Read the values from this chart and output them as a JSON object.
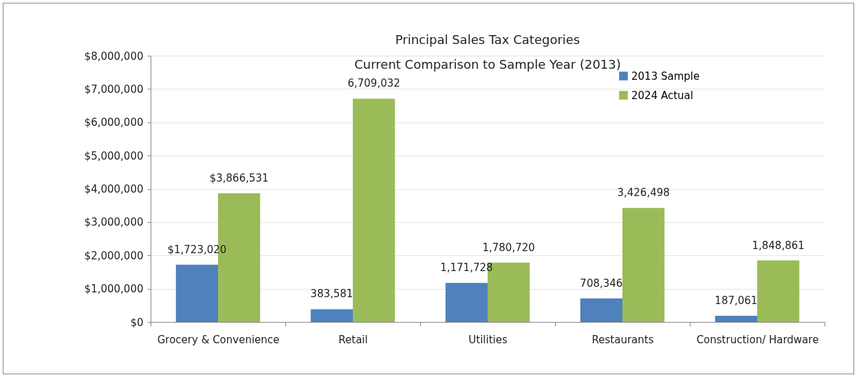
{
  "chart_data": {
    "type": "bar",
    "title": "Principal Sales Tax Categories",
    "subtitle": "Current Comparison to Sample Year (2013)",
    "categories": [
      "Grocery & Convenience",
      "Retail",
      "Utilities",
      "Restaurants",
      "Construction/ Hardware"
    ],
    "series": [
      {
        "name": "2013 Sample",
        "color": "#4f81bd",
        "values": [
          1723020,
          383581,
          1171728,
          708346,
          187061
        ],
        "value_labels": [
          "$1,723,020",
          "383,581",
          "1,171,728",
          "708,346",
          "187,061"
        ]
      },
      {
        "name": "2024 Actual",
        "color": "#9bbb59",
        "values": [
          3866531,
          6709032,
          1780720,
          3426498,
          1848861
        ],
        "value_labels": [
          "$3,866,531",
          "6,709,032",
          "1,780,720",
          "3,426,498",
          "1,848,861"
        ]
      }
    ],
    "ylim": [
      0,
      8000000
    ],
    "yticks": [
      {
        "value": 0,
        "label": "$0"
      },
      {
        "value": 1000000,
        "label": "$1,000,000"
      },
      {
        "value": 2000000,
        "label": "$2,000,000"
      },
      {
        "value": 3000000,
        "label": "$3,000,000"
      },
      {
        "value": 4000000,
        "label": "$4,000,000"
      },
      {
        "value": 5000000,
        "label": "$5,000,000"
      },
      {
        "value": 6000000,
        "label": "$6,000,000"
      },
      {
        "value": 7000000,
        "label": "$7,000,000"
      },
      {
        "value": 8000000,
        "label": "$8,000,000"
      }
    ],
    "grid": "y",
    "legend": "top right"
  }
}
